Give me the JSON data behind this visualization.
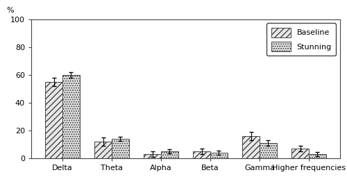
{
  "categories": [
    "Delta",
    "Theta",
    "Alpha",
    "Beta",
    "Gamma",
    "Higher frequencies"
  ],
  "baseline_values": [
    55,
    12,
    3,
    5,
    16,
    7
  ],
  "stunning_values": [
    60,
    14,
    5,
    4,
    11,
    3
  ],
  "baseline_errors": [
    3,
    3,
    2,
    2,
    3,
    2
  ],
  "stunning_errors": [
    2,
    1.5,
    1.5,
    1.5,
    2,
    1.5
  ],
  "percent_label": "%",
  "ylim": [
    0,
    100
  ],
  "yticks": [
    0,
    20,
    40,
    60,
    80,
    100
  ],
  "bar_width": 0.35,
  "baseline_hatch": "////",
  "stunning_hatch": ".....",
  "baseline_label": "Baseline",
  "stunning_label": "Stunning",
  "bar_facecolor": "#e8e8e8",
  "bar_edgecolor": "#444444",
  "error_capsize": 3,
  "error_color": "black",
  "background_color": "#ffffff",
  "legend_fontsize": 8,
  "tick_fontsize": 8,
  "label_fontsize": 8
}
